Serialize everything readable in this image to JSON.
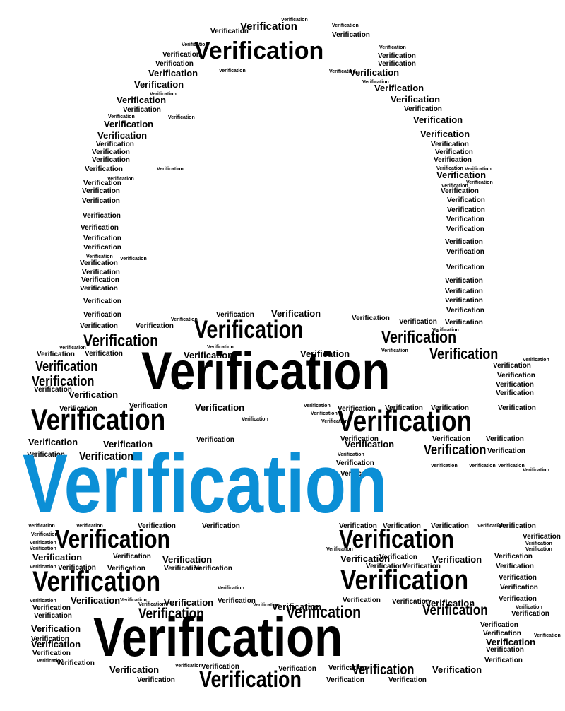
{
  "word": "Verification",
  "colors": {
    "ink": "#000000",
    "accent": "#0b8fd6",
    "background": "#ffffff"
  },
  "shape": "padlock-icon"
}
